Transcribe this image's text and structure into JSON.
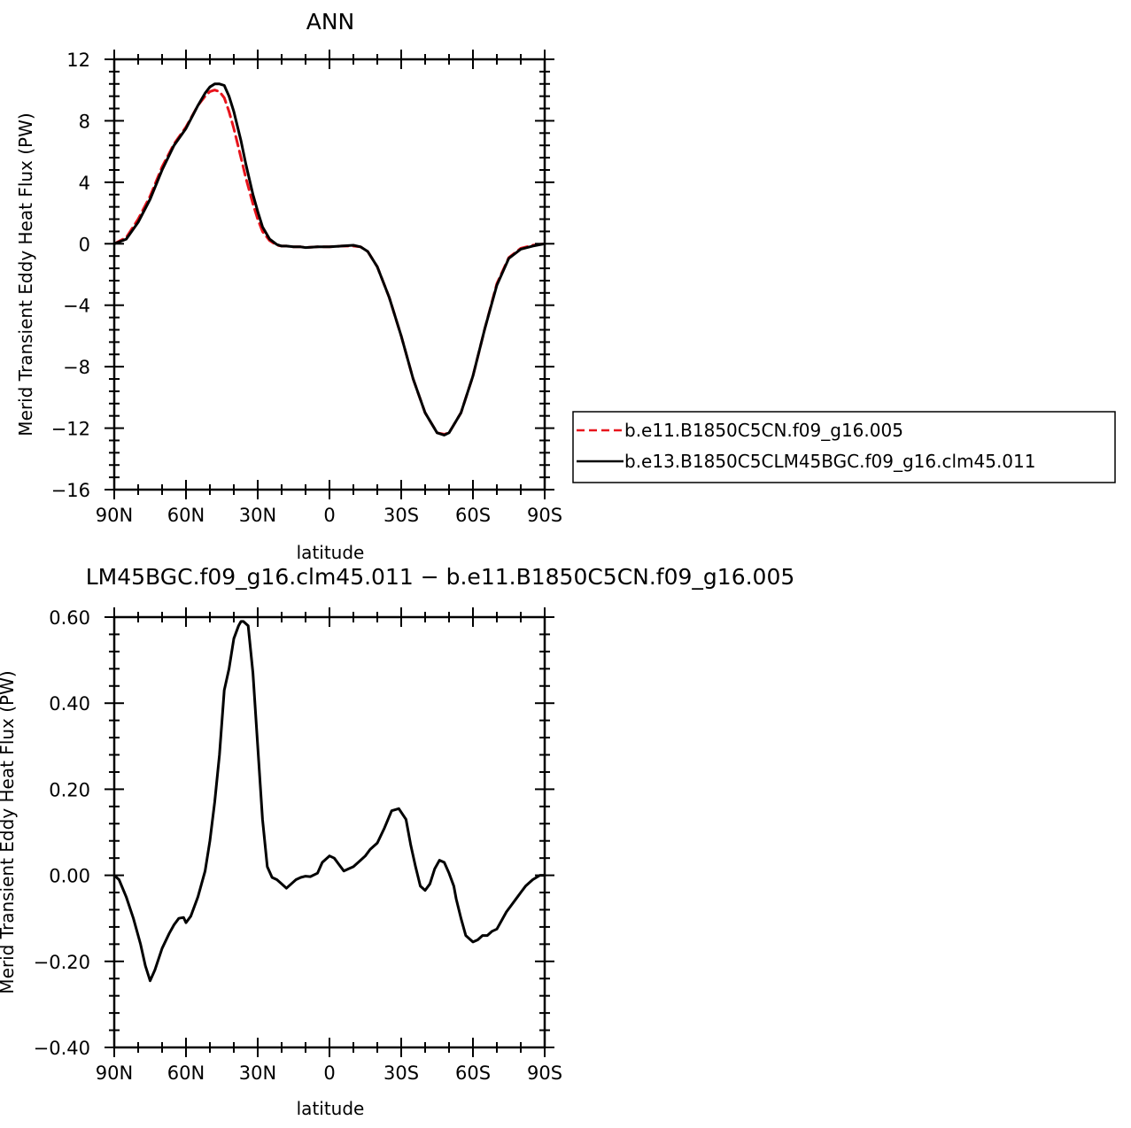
{
  "chart_data": [
    {
      "type": "line",
      "title": "ANN",
      "xlabel": "latitude",
      "ylabel": "Merid Transient Eddy Heat Flux (PW)",
      "xlim": [
        90,
        -90
      ],
      "ylim": [
        -16,
        12
      ],
      "xticks": [
        90,
        60,
        30,
        0,
        -30,
        -60,
        -90
      ],
      "xtick_labels": [
        "90N",
        "60N",
        "30N",
        "0",
        "30S",
        "60S",
        "90S"
      ],
      "yticks": [
        12,
        8,
        4,
        0,
        -4,
        -8,
        -12,
        -16
      ],
      "ytick_labels": [
        "12",
        "8",
        "4",
        "0",
        "−4",
        "−8",
        "−12",
        "−16"
      ],
      "grid": false,
      "legend_position": "right",
      "series": [
        {
          "name": "b.e11.B1850C5CN.f09_g16.005",
          "color": "#e8141c",
          "dash": "dashed",
          "x": [
            90,
            85,
            80,
            75,
            70,
            65,
            60,
            55,
            52,
            50,
            48,
            46,
            44,
            42,
            40,
            37,
            35,
            32,
            30,
            28,
            25,
            22,
            20,
            18,
            15,
            12,
            10,
            5,
            0,
            -5,
            -10,
            -13,
            -16,
            -20,
            -25,
            -30,
            -35,
            -40,
            -45,
            -48,
            -50,
            -55,
            -60,
            -65,
            -70,
            -75,
            -80,
            -85,
            -90
          ],
          "y": [
            0.0,
            0.4,
            1.6,
            3.1,
            5.0,
            6.5,
            7.6,
            9.0,
            9.6,
            9.9,
            10.0,
            9.9,
            9.5,
            8.6,
            7.5,
            5.6,
            4.3,
            2.6,
            1.6,
            0.8,
            0.2,
            -0.1,
            -0.15,
            -0.15,
            -0.2,
            -0.2,
            -0.25,
            -0.2,
            -0.2,
            -0.15,
            -0.15,
            -0.2,
            -0.5,
            -1.5,
            -3.5,
            -6.0,
            -8.8,
            -11.0,
            -12.3,
            -12.4,
            -12.3,
            -11.0,
            -8.6,
            -5.5,
            -2.6,
            -0.9,
            -0.3,
            -0.1,
            0.0
          ]
        },
        {
          "name": "b.e13.B1850C5CLM45BGC.f09_g16.clm45.011",
          "color": "#000000",
          "dash": "solid",
          "x": [
            90,
            85,
            80,
            75,
            70,
            65,
            60,
            55,
            52,
            50,
            48,
            46,
            44,
            42,
            40,
            37,
            35,
            32,
            30,
            28,
            25,
            22,
            20,
            18,
            15,
            12,
            10,
            5,
            0,
            -5,
            -10,
            -13,
            -16,
            -20,
            -25,
            -30,
            -35,
            -40,
            -45,
            -48,
            -50,
            -55,
            -60,
            -65,
            -70,
            -75,
            -80,
            -85,
            -90
          ],
          "y": [
            0.0,
            0.3,
            1.4,
            2.9,
            4.8,
            6.4,
            7.5,
            9.0,
            9.8,
            10.2,
            10.4,
            10.4,
            10.3,
            9.6,
            8.6,
            6.7,
            5.2,
            3.2,
            2.1,
            1.1,
            0.3,
            -0.05,
            -0.15,
            -0.15,
            -0.2,
            -0.2,
            -0.25,
            -0.2,
            -0.2,
            -0.15,
            -0.1,
            -0.2,
            -0.5,
            -1.5,
            -3.5,
            -6.0,
            -8.8,
            -11.0,
            -12.3,
            -12.45,
            -12.3,
            -11.0,
            -8.6,
            -5.5,
            -2.7,
            -0.95,
            -0.35,
            -0.15,
            0.0
          ]
        }
      ]
    },
    {
      "type": "line",
      "title": "LM45BGC.f09_g16.clm45.011 − b.e11.B1850C5CN.f09_g16.005",
      "xlabel": "latitude",
      "ylabel": "Merid Transient Eddy Heat Flux (PW)",
      "xlim": [
        90,
        -90
      ],
      "ylim": [
        -0.4,
        0.6
      ],
      "xticks": [
        90,
        60,
        30,
        0,
        -30,
        -60,
        -90
      ],
      "xtick_labels": [
        "90N",
        "60N",
        "30N",
        "0",
        "30S",
        "60S",
        "90S"
      ],
      "yticks": [
        0.6,
        0.4,
        0.2,
        0.0,
        -0.2,
        -0.4
      ],
      "ytick_labels": [
        "0.60",
        "0.40",
        "0.20",
        "0.00",
        "−0.20",
        "−0.40"
      ],
      "grid": false,
      "series": [
        {
          "color": "#000000",
          "dash": "solid",
          "x": [
            90,
            88,
            85,
            82,
            79,
            77,
            75,
            73,
            70,
            67,
            65,
            63,
            61,
            60,
            58,
            55,
            52,
            50,
            48,
            46,
            44,
            42,
            40,
            38,
            37,
            36,
            34,
            32,
            30,
            28,
            26,
            24,
            22,
            20,
            18,
            16,
            14,
            12,
            10,
            8,
            5,
            3,
            0,
            -2,
            -4,
            -6,
            -8,
            -10,
            -13,
            -15,
            -17,
            -20,
            -23,
            -26,
            -29,
            -32,
            -34,
            -36,
            -38,
            -40,
            -42,
            -44,
            -46,
            -48,
            -50,
            -52,
            -53,
            -55,
            -57,
            -60,
            -62,
            -64,
            -66,
            -68,
            -70,
            -72,
            -74,
            -76,
            -78,
            -80,
            -82,
            -85,
            -88,
            -90
          ],
          "y": [
            0.0,
            -0.01,
            -0.05,
            -0.1,
            -0.16,
            -0.21,
            -0.245,
            -0.22,
            -0.17,
            -0.135,
            -0.115,
            -0.1,
            -0.098,
            -0.11,
            -0.095,
            -0.05,
            0.01,
            0.08,
            0.17,
            0.28,
            0.43,
            0.48,
            0.55,
            0.58,
            0.59,
            0.59,
            0.58,
            0.47,
            0.3,
            0.13,
            0.02,
            -0.005,
            -0.01,
            -0.02,
            -0.03,
            -0.02,
            -0.01,
            -0.005,
            -0.002,
            -0.003,
            0.005,
            0.03,
            0.045,
            0.04,
            0.025,
            0.01,
            0.015,
            0.02,
            0.035,
            0.045,
            0.06,
            0.075,
            0.11,
            0.15,
            0.155,
            0.13,
            0.07,
            0.02,
            -0.025,
            -0.035,
            -0.02,
            0.015,
            0.035,
            0.03,
            0.005,
            -0.025,
            -0.055,
            -0.1,
            -0.14,
            -0.155,
            -0.15,
            -0.14,
            -0.14,
            -0.13,
            -0.125,
            -0.105,
            -0.085,
            -0.07,
            -0.055,
            -0.04,
            -0.025,
            -0.01,
            0.0,
            0.0
          ]
        }
      ]
    }
  ]
}
